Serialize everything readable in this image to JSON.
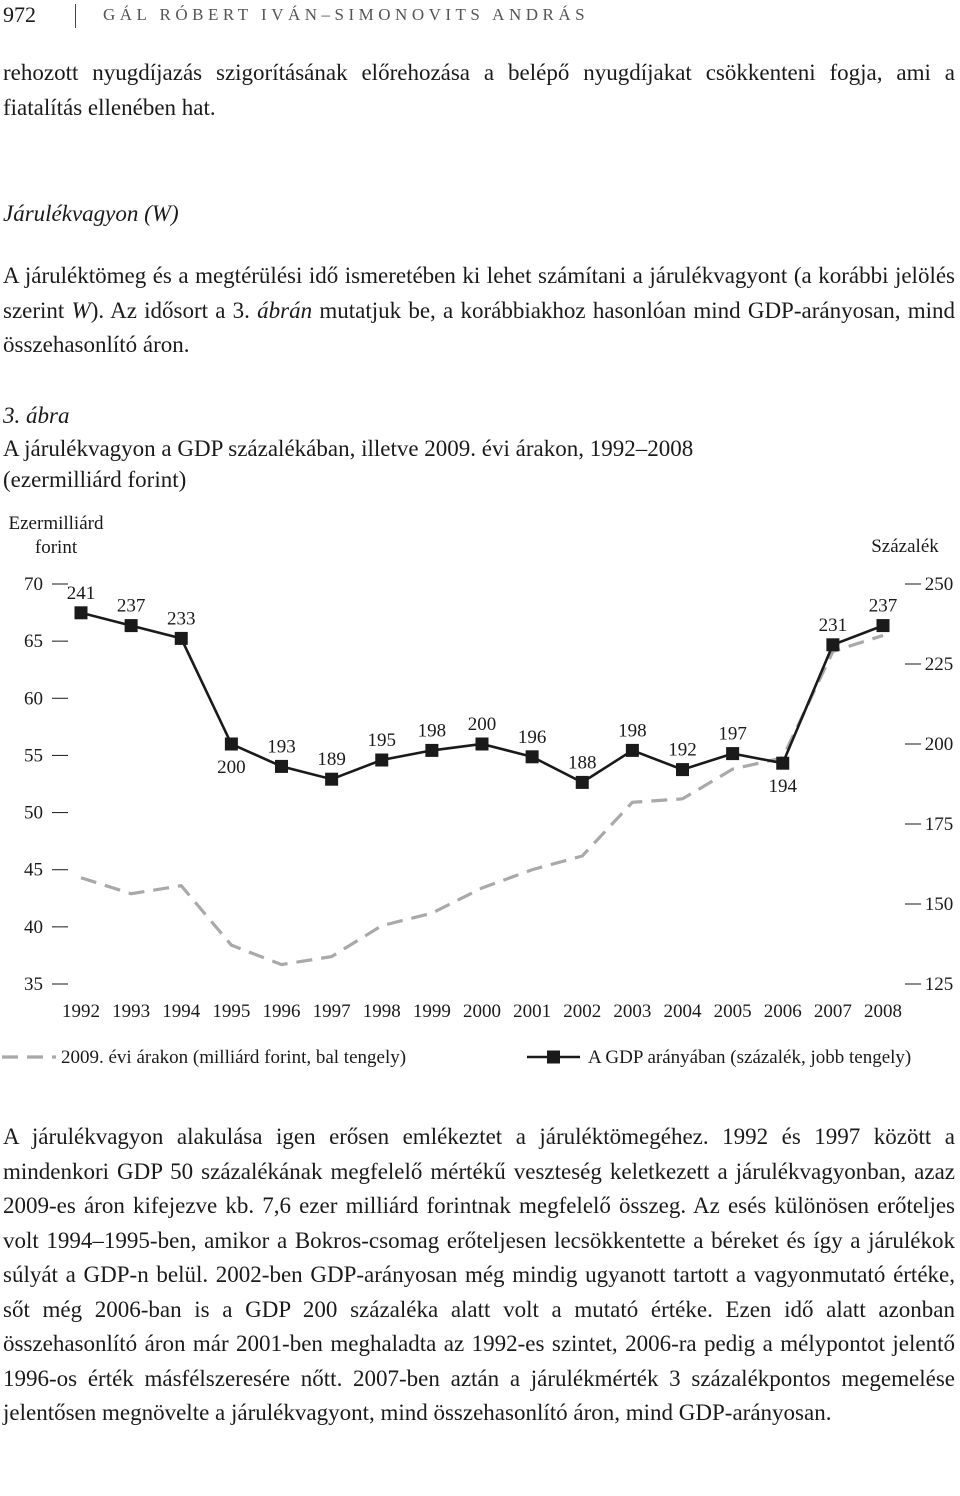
{
  "header": {
    "page_number": "972",
    "authors": "GÁL RÓBERT IVÁN–SIMONOVITS ANDRÁS"
  },
  "intro": "rehozott nyugdíjazás szigorításának előrehozása a belépő nyugdíjakat csökkenteni fogja, ami a fiatalítás ellenében hat.",
  "section_title": "Járulékvagyon (W)",
  "section_text": [
    "A járuléktömeg és a megtérülési idő ismeretében ki lehet számítani a járulékvagyont (a korábbi jelölés szerint ",
    "W",
    "). Az idősort a 3. ",
    "ábrán",
    " mutatjuk be, a korábbiakhoz hasonlóan mind GDP-arányosan, mind összehasonlító áron."
  ],
  "figure": {
    "label": "3. ábra",
    "caption": "A járulékvagyon a GDP százalékában, illetve 2009. évi árakon, 1992–2008",
    "caption_unit": "(ezermilliárd forint)"
  },
  "chart_data": {
    "type": "line",
    "y_label": "Ezermilliárd forint",
    "y2_label": "Százalék",
    "categories": [
      "1992",
      "1993",
      "1994",
      "1995",
      "1996",
      "1997",
      "1998",
      "1999",
      "2000",
      "2001",
      "2002",
      "2003",
      "2004",
      "2005",
      "2006",
      "2007",
      "2008"
    ],
    "ylim": [
      35,
      70
    ],
    "yticks": [
      35,
      40,
      45,
      50,
      55,
      60,
      65,
      70
    ],
    "y2lim": [
      125,
      250
    ],
    "y2ticks": [
      125,
      150,
      175,
      200,
      225,
      250
    ],
    "series": [
      {
        "name": "2009. évi árakon (milliárd forint, bal tengely)",
        "color": "#a9a9a9",
        "dashed": true,
        "values": [
          44.3,
          42.9,
          43.6,
          38.4,
          36.7,
          37.4,
          40.1,
          41.2,
          43.4,
          45.0,
          46.2,
          50.9,
          51.2,
          53.8,
          54.8,
          64.1,
          65.5
        ]
      },
      {
        "name": "A GDP arányában (százalék, jobb tengely)",
        "color": "#1a1a1a",
        "axis": "y2",
        "markers": true,
        "data_labels": true,
        "values": [
          241,
          237,
          233,
          200,
          193,
          189,
          195,
          198,
          200,
          196,
          188,
          198,
          192,
          197,
          194,
          231,
          237
        ]
      }
    ]
  },
  "body": "A járulékvagyon alakulása igen erősen emlékeztet a járuléktömegéhez. 1992 és 1997 között a mindenkori GDP 50 százalékának megfelelő mértékű veszteség keletkezett a járulékvagyonban, azaz 2009-es áron kifejezve kb. 7,6 ezer milliárd forintnak megfelelő összeg. Az esés különösen erőteljes volt 1994–1995-ben, amikor a Bokros-csomag erőteljesen lecsökkentette a béreket és így a járulékok súlyát a GDP-n belül. 2002-ben GDP-arányosan még mindig ugyanott tartott a vagyonmutató értéke, sőt még 2006-ban is a GDP 200 százaléka alatt volt a mutató értéke. Ezen idő alatt azonban összehasonlító áron már 2001-ben meghaladta az 1992-es szintet, 2006-ra pedig a mélypontot jelentő 1996-os érték másfélszeresére nőtt. 2007-ben aztán a járulékmérték 3 százalékpontos megemelése jelentősen megnövelte a járulékvagyont, mind összehasonlító áron, mind GDP-arányosan."
}
